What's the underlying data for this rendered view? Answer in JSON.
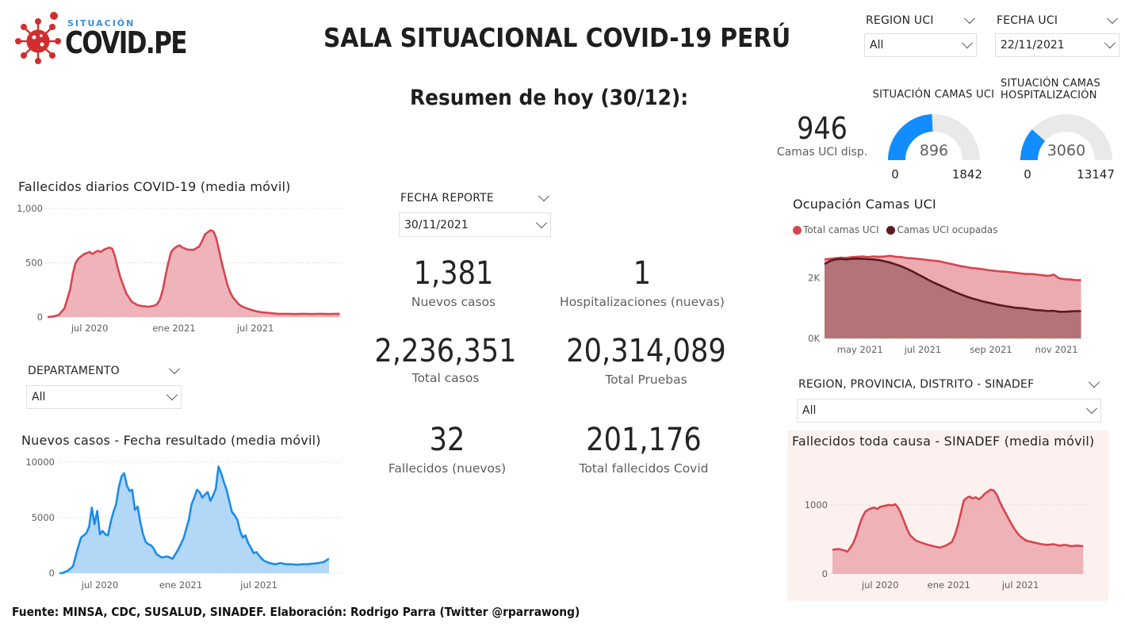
{
  "logo": {
    "top": "SITUACIÓN",
    "main": "COVID.PE"
  },
  "title": "SALA SITUACIONAL COVID-19 PERÚ",
  "summary_title": "Resumen de hoy (30/12):",
  "filters": {
    "region_uci": {
      "label": "REGION UCI",
      "value": "All"
    },
    "fecha_uci": {
      "label": "FECHA UCI",
      "value": "22/11/2021"
    },
    "fecha_reporte": {
      "label": "FECHA REPORTE",
      "value": "30/11/2021"
    },
    "departamento": {
      "label": "DEPARTAMENTO",
      "value": "All"
    },
    "sinadef_region": {
      "label": "REGION, PROVINCIA, DISTRITO - SINADEF",
      "value": "All"
    }
  },
  "kpis": {
    "nuevos_casos": {
      "value": "1,381",
      "label": "Nuevos casos"
    },
    "hospitalizaciones": {
      "value": "1",
      "label": "Hospitalizaciones (nuevas)"
    },
    "total_casos": {
      "value": "2,236,351",
      "label": "Total casos"
    },
    "total_pruebas": {
      "value": "20,314,089",
      "label": "Total Pruebas"
    },
    "fallecidos": {
      "value": "32",
      "label": "Fallecidos (nuevos)"
    },
    "total_fallecidos": {
      "value": "201,176",
      "label": "Total fallecidos Covid"
    },
    "camas_uci_disp": {
      "value": "946",
      "label": "Camas UCI disp."
    }
  },
  "gauges": [
    {
      "title_lines": [
        "SITUACIÓN CAMAS UCI"
      ],
      "value": 896,
      "min": 0,
      "max": 1842,
      "min_label": "0",
      "max_label": "1842",
      "value_label": "896",
      "color": "#118dff"
    },
    {
      "title_lines": [
        "SITUACIÓN CAMAS",
        "HOSPITALIZACIÓN"
      ],
      "value": 3060,
      "min": 0,
      "max": 13147,
      "min_label": "0",
      "max_label": "13147",
      "value_label": "3060",
      "color": "#118dff"
    }
  ],
  "colors": {
    "red": "#d64550",
    "red_fill": "#eba7ad",
    "blue": "#1c8ceb",
    "blue_fill": "#a6d0f5",
    "dark_red": "#5a1a1e",
    "panel_bg": "#fcf1ee",
    "gauge_track": "#e9e9e9"
  },
  "chart_data": [
    {
      "id": "fallecidos",
      "type": "area",
      "title": "Fallecidos diarios COVID-19 (media móvil)",
      "ylim": [
        0,
        1000
      ],
      "yticks": [
        0,
        500,
        1000
      ],
      "ytick_labels": [
        "0",
        "500",
        "1,000"
      ],
      "xticks": [
        {
          "x": 15,
          "label": "jul 2020"
        },
        {
          "x": 45,
          "label": "ene 2021"
        },
        {
          "x": 74,
          "label": "jul 2021"
        }
      ],
      "xlim": [
        0,
        105
      ],
      "x": [
        0,
        2,
        4,
        6,
        8,
        9,
        10,
        11,
        12,
        13,
        14,
        15,
        16,
        17,
        18,
        19,
        20,
        21,
        22,
        23,
        24,
        25,
        26,
        28,
        30,
        32,
        34,
        36,
        38,
        39,
        40,
        41,
        42,
        43,
        44,
        45,
        46,
        47,
        48,
        50,
        52,
        54,
        55,
        56,
        57,
        58,
        59,
        60,
        61,
        62,
        63,
        64,
        65,
        66,
        67,
        68,
        69,
        70,
        71,
        72,
        74,
        76,
        78,
        80,
        82,
        84,
        86,
        88,
        90,
        92,
        94,
        96,
        98,
        100,
        102,
        104
      ],
      "y": [
        0,
        5,
        20,
        80,
        250,
        400,
        500,
        540,
        560,
        580,
        590,
        600,
        580,
        600,
        610,
        600,
        620,
        630,
        640,
        630,
        560,
        450,
        360,
        220,
        140,
        110,
        100,
        95,
        105,
        120,
        160,
        250,
        380,
        500,
        600,
        630,
        650,
        660,
        640,
        620,
        620,
        650,
        700,
        760,
        780,
        800,
        790,
        730,
        620,
        500,
        400,
        300,
        230,
        180,
        150,
        120,
        100,
        90,
        80,
        70,
        55,
        45,
        40,
        35,
        30,
        30,
        30,
        28,
        30,
        30,
        28,
        30,
        30,
        28,
        30,
        30
      ],
      "stroke": "#d64550",
      "fill": "#eba7ad"
    },
    {
      "id": "casos",
      "type": "area",
      "title": "Nuevos casos - Fecha resultado (media móvil)",
      "ylim": [
        0,
        10000
      ],
      "yticks": [
        0,
        5000,
        10000
      ],
      "ytick_labels": [
        "0",
        "5000",
        "10000"
      ],
      "xticks": [
        {
          "x": 15,
          "label": "jul 2020"
        },
        {
          "x": 45,
          "label": "ene 2021"
        },
        {
          "x": 74,
          "label": "jul 2021"
        }
      ],
      "xlim": [
        0,
        105
      ],
      "x": [
        0,
        1,
        3,
        5,
        6,
        7,
        8,
        9,
        10,
        11,
        12,
        13,
        14,
        15,
        16,
        17,
        18,
        19,
        20,
        21,
        22,
        23,
        24,
        25,
        26,
        27,
        28,
        29,
        30,
        31,
        32,
        33,
        34,
        35,
        36,
        38,
        40,
        42,
        44,
        46,
        48,
        49,
        50,
        51,
        52,
        53,
        54,
        55,
        56,
        57,
        58,
        59,
        60,
        61,
        62,
        63,
        64,
        65,
        66,
        67,
        68,
        69,
        70,
        71,
        72,
        73,
        74,
        75,
        76,
        78,
        80,
        82,
        84,
        86,
        88,
        90,
        92,
        94,
        96,
        98,
        100
      ],
      "y": [
        0,
        0,
        200,
        600,
        1500,
        2400,
        3200,
        3400,
        3600,
        4200,
        5900,
        4400,
        5600,
        3500,
        3800,
        3500,
        3400,
        4600,
        5500,
        6200,
        7700,
        8700,
        9000,
        7900,
        7400,
        7500,
        5700,
        6000,
        4600,
        3500,
        2800,
        2600,
        2500,
        2200,
        1700,
        1400,
        1500,
        1300,
        2100,
        3100,
        4800,
        6200,
        6800,
        7500,
        7300,
        6800,
        7100,
        7300,
        6500,
        7000,
        7600,
        9600,
        9000,
        8200,
        7500,
        6500,
        5500,
        5200,
        4800,
        3800,
        3200,
        3400,
        2700,
        2300,
        1800,
        1900,
        1600,
        1300,
        1100,
        900,
        800,
        900,
        800,
        800,
        750,
        800,
        800,
        850,
        900,
        1000,
        1300
      ],
      "stroke": "#1c8ceb",
      "fill": "#a6d0f5"
    },
    {
      "id": "ocupacion",
      "type": "area",
      "title": "Ocupación Camas UCI",
      "legend": [
        "Total camas UCI",
        "Camas UCI ocupadas"
      ],
      "ylim": [
        0,
        3000
      ],
      "yticks": [
        0,
        2000
      ],
      "ytick_labels": [
        "0K",
        "2K"
      ],
      "xticks": [
        {
          "x": 13,
          "label": "may 2021"
        },
        {
          "x": 36,
          "label": "jul 2021"
        },
        {
          "x": 61,
          "label": "sep 2021"
        },
        {
          "x": 85,
          "label": "nov 2021"
        }
      ],
      "xlim": [
        0,
        95
      ],
      "series": [
        {
          "name": "Total camas UCI",
          "x": [
            0,
            2,
            4,
            6,
            8,
            10,
            12,
            14,
            16,
            18,
            20,
            22,
            24,
            26,
            28,
            30,
            32,
            34,
            36,
            38,
            40,
            42,
            44,
            46,
            48,
            50,
            52,
            54,
            56,
            58,
            60,
            62,
            64,
            66,
            68,
            70,
            72,
            74,
            76,
            78,
            80,
            82,
            84,
            86,
            88,
            90,
            92,
            94
          ],
          "y": [
            2600,
            2620,
            2640,
            2660,
            2650,
            2680,
            2690,
            2700,
            2680,
            2700,
            2690,
            2700,
            2720,
            2690,
            2680,
            2650,
            2640,
            2620,
            2600,
            2580,
            2560,
            2540,
            2500,
            2460,
            2420,
            2380,
            2350,
            2320,
            2300,
            2280,
            2250,
            2230,
            2210,
            2200,
            2180,
            2160,
            2140,
            2120,
            2120,
            2100,
            2080,
            2060,
            2100,
            1980,
            1950,
            1940,
            1920,
            1920
          ],
          "stroke": "#d64550",
          "fill": "#eba7ad"
        },
        {
          "name": "Camas UCI ocupadas",
          "x": [
            0,
            2,
            4,
            6,
            8,
            10,
            12,
            14,
            16,
            18,
            20,
            22,
            24,
            26,
            28,
            30,
            32,
            34,
            36,
            38,
            40,
            42,
            44,
            46,
            48,
            50,
            52,
            54,
            56,
            58,
            60,
            62,
            64,
            66,
            68,
            70,
            72,
            74,
            76,
            78,
            80,
            82,
            84,
            86,
            88,
            90,
            92,
            94
          ],
          "y": [
            2450,
            2550,
            2600,
            2620,
            2600,
            2620,
            2630,
            2620,
            2610,
            2600,
            2580,
            2540,
            2500,
            2440,
            2380,
            2300,
            2220,
            2120,
            2030,
            1930,
            1840,
            1760,
            1680,
            1600,
            1520,
            1450,
            1380,
            1320,
            1270,
            1220,
            1180,
            1140,
            1100,
            1070,
            1040,
            1010,
            1000,
            980,
            950,
            930,
            920,
            900,
            910,
            880,
            880,
            890,
            900,
            900
          ],
          "stroke": "#5a1a1e",
          "fill": "#b07074"
        }
      ]
    },
    {
      "id": "sinadef",
      "type": "area",
      "title": "Fallecidos toda causa - SINADEF (media móvil)",
      "ylim": [
        0,
        1400
      ],
      "yticks": [
        0,
        1000
      ],
      "ytick_labels": [
        "0",
        "1000"
      ],
      "xticks": [
        {
          "x": 16,
          "label": "jul 2020"
        },
        {
          "x": 39,
          "label": "ene 2021"
        },
        {
          "x": 63,
          "label": "jul 2021"
        }
      ],
      "xlim": [
        0,
        85
      ],
      "x": [
        0,
        2,
        4,
        5,
        6,
        7,
        8,
        9,
        10,
        11,
        12,
        13,
        14,
        15,
        16,
        17,
        18,
        19,
        20,
        21,
        22,
        23,
        24,
        25,
        26,
        28,
        30,
        32,
        34,
        36,
        38,
        40,
        41,
        42,
        43,
        44,
        45,
        46,
        47,
        48,
        49,
        50,
        51,
        52,
        53,
        54,
        55,
        56,
        57,
        58,
        59,
        60,
        61,
        62,
        63,
        64,
        65,
        66,
        68,
        70,
        72,
        74,
        76,
        78,
        80,
        82,
        84
      ],
      "y": [
        350,
        360,
        340,
        320,
        380,
        450,
        560,
        700,
        820,
        900,
        930,
        950,
        960,
        940,
        970,
        980,
        990,
        1000,
        990,
        1010,
        960,
        870,
        760,
        650,
        560,
        480,
        450,
        420,
        400,
        380,
        410,
        460,
        560,
        700,
        880,
        1060,
        1100,
        1120,
        1090,
        1110,
        1080,
        1110,
        1160,
        1190,
        1220,
        1210,
        1150,
        1050,
        960,
        880,
        800,
        720,
        650,
        590,
        540,
        510,
        480,
        470,
        450,
        430,
        420,
        430,
        410,
        420,
        400,
        410,
        400
      ],
      "stroke": "#d64550",
      "fill": "#eba7ad"
    }
  ]
}
